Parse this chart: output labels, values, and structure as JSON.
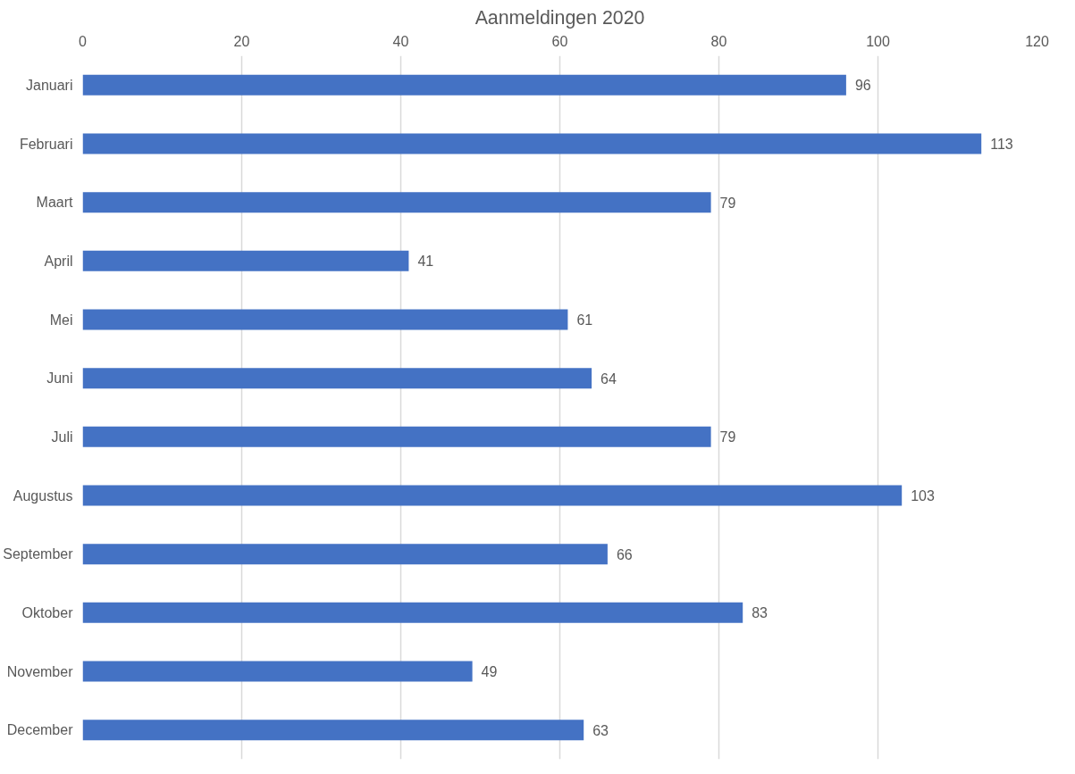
{
  "chart_data": {
    "type": "bar",
    "orientation": "horizontal",
    "title": "Aanmeldingen 2020",
    "categories": [
      "Januari",
      "Februari",
      "Maart",
      "April",
      "Mei",
      "Juni",
      "Juli",
      "Augustus",
      "September",
      "Oktober",
      "November",
      "December"
    ],
    "values": [
      96,
      113,
      79,
      41,
      61,
      64,
      79,
      103,
      66,
      83,
      49,
      63
    ],
    "color": "#4472c4",
    "xlim": [
      0,
      120
    ],
    "xticks": [
      0,
      20,
      40,
      60,
      80,
      100,
      120
    ],
    "grid": "x",
    "data_labels": true
  }
}
